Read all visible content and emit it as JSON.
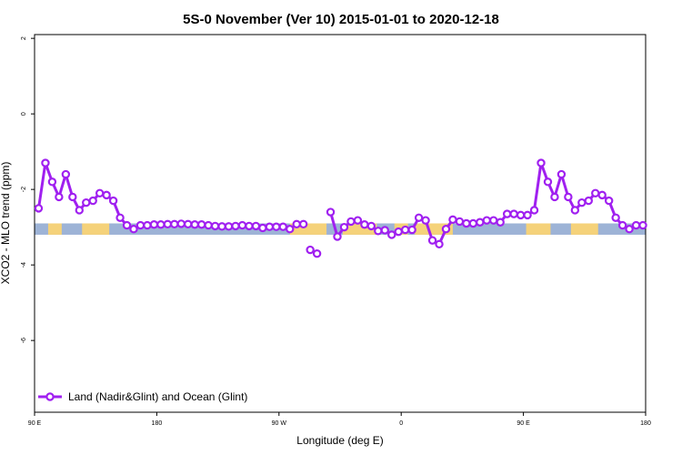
{
  "chart_data": {
    "type": "line",
    "title": "5S-0 November (Ver 10)   2015-01-01 to 2020-12-18",
    "xlabel": "Longitude (deg E)",
    "ylabel": "XCO2 - MLO trend (ppm)",
    "xlim": [
      90,
      540
    ],
    "ylim": [
      -7.9,
      2.1
    ],
    "x_ticks": [
      {
        "value": 90,
        "label": "90 E"
      },
      {
        "value": 180,
        "label": "180"
      },
      {
        "value": 270,
        "label": "90 W"
      },
      {
        "value": 360,
        "label": "0"
      },
      {
        "value": 450,
        "label": "90 E"
      },
      {
        "value": 540,
        "label": "180"
      }
    ],
    "y_ticks": [
      {
        "value": 2,
        "label": "2"
      },
      {
        "value": 0,
        "label": "0"
      },
      {
        "value": -2,
        "label": "-2"
      },
      {
        "value": -4,
        "label": "-4"
      },
      {
        "value": -6,
        "label": "-6"
      }
    ],
    "surface_band": {
      "y_range": [
        -3.2,
        -2.9
      ],
      "ocean_color": "#9db3d6",
      "land_color": "#f5d27a",
      "land_segments": [
        [
          100,
          110
        ],
        [
          125,
          145
        ],
        [
          278,
          305
        ],
        [
          317,
          342
        ],
        [
          355,
          365
        ],
        [
          370,
          398
        ],
        [
          452,
          470
        ],
        [
          485,
          505
        ]
      ]
    },
    "legend": {
      "position": "bottom-left"
    },
    "series": [
      {
        "name": "Land (Nadir&Glint) and Ocean (Glint)",
        "color": "#a020f0",
        "segments": [
          {
            "x": [
              93,
              98,
              103,
              108,
              113,
              118,
              123,
              128,
              133,
              138,
              143,
              148,
              153,
              158,
              163,
              168,
              173,
              178,
              183,
              188,
              193,
              198,
              203,
              208,
              213,
              218,
              223,
              228,
              233,
              238,
              243,
              248,
              253,
              258,
              263,
              268,
              273,
              278,
              283,
              288
            ],
            "y": [
              -2.5,
              -1.3,
              -1.8,
              -2.2,
              -1.6,
              -2.2,
              -2.55,
              -2.35,
              -2.3,
              -2.1,
              -2.15,
              -2.3,
              -2.75,
              -2.95,
              -3.05,
              -2.95,
              -2.95,
              -2.93,
              -2.93,
              -2.92,
              -2.92,
              -2.91,
              -2.92,
              -2.93,
              -2.93,
              -2.95,
              -2.97,
              -2.98,
              -2.98,
              -2.97,
              -2.95,
              -2.97,
              -2.97,
              -3.02,
              -2.99,
              -2.99,
              -2.99,
              -3.05,
              -2.92,
              -2.92
            ]
          },
          {
            "x": [
              293,
              298
            ],
            "y": [
              -3.6,
              -3.7
            ]
          },
          {
            "x": [
              308,
              313,
              318,
              323,
              328,
              333,
              338,
              343,
              348,
              353,
              358,
              363,
              368,
              373,
              378,
              383,
              388,
              393,
              398,
              403,
              408,
              413,
              418,
              423,
              428,
              433,
              438,
              443,
              448,
              453,
              458,
              463,
              468,
              473,
              478,
              483,
              488,
              493,
              498,
              503,
              508,
              513,
              518,
              523,
              528,
              533,
              538
            ],
            "y": [
              -2.6,
              -3.25,
              -3.0,
              -2.85,
              -2.82,
              -2.93,
              -2.97,
              -3.1,
              -3.08,
              -3.2,
              -3.12,
              -3.07,
              -3.07,
              -2.75,
              -2.82,
              -3.35,
              -3.45,
              -3.05,
              -2.8,
              -2.85,
              -2.9,
              -2.9,
              -2.87,
              -2.82,
              -2.82,
              -2.87,
              -2.65,
              -2.65,
              -2.68,
              -2.68,
              -2.55,
              -1.3,
              -1.8,
              -2.2,
              -1.6,
              -2.2,
              -2.55,
              -2.35,
              -2.3,
              -2.1,
              -2.15,
              -2.3,
              -2.75,
              -2.95,
              -3.05,
              -2.95,
              -2.95
            ]
          }
        ]
      }
    ]
  }
}
